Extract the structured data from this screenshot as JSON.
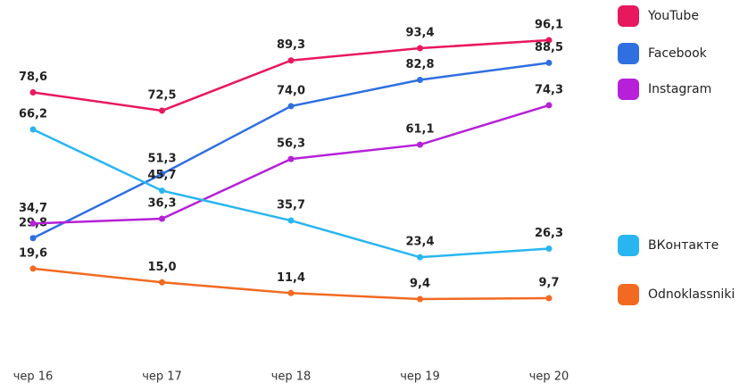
{
  "chart_data": {
    "type": "line",
    "categories": [
      "чер 16",
      "чер 17",
      "чер 18",
      "чер 19",
      "чер 20"
    ],
    "series": [
      {
        "name": "YouTube",
        "color": "#e8185f",
        "values": [
          78.6,
          72.5,
          89.3,
          93.4,
          96.1
        ],
        "value_labels": [
          "78,6",
          "72,5",
          "89,3",
          "93,4",
          "96,1"
        ]
      },
      {
        "name": "Facebook",
        "color": "#2f6fe0",
        "values": [
          29.8,
          51.3,
          74.0,
          82.8,
          88.5
        ],
        "value_labels": [
          "29,8",
          "51,3",
          "74,0",
          "82,8",
          "88,5"
        ]
      },
      {
        "name": "Instagram",
        "color": "#b620d8",
        "values": [
          34.7,
          36.3,
          56.3,
          61.1,
          74.3
        ],
        "value_labels": [
          "34,7",
          "36,3",
          "56,3",
          "61,1",
          "74,3"
        ]
      },
      {
        "name": "ВКонтакте",
        "color": "#29b6f0",
        "values": [
          66.2,
          45.7,
          35.7,
          23.4,
          26.3
        ],
        "value_labels": [
          "66,2",
          "45,7",
          "35,7",
          "23,4",
          "26,3"
        ]
      },
      {
        "name": "Odnoklassniki",
        "color": "#f26a21",
        "values": [
          19.6,
          15.0,
          11.4,
          9.4,
          9.7
        ],
        "value_labels": [
          "19,6",
          "15,0",
          "11,4",
          "9,4",
          "9,7"
        ]
      }
    ]
  }
}
